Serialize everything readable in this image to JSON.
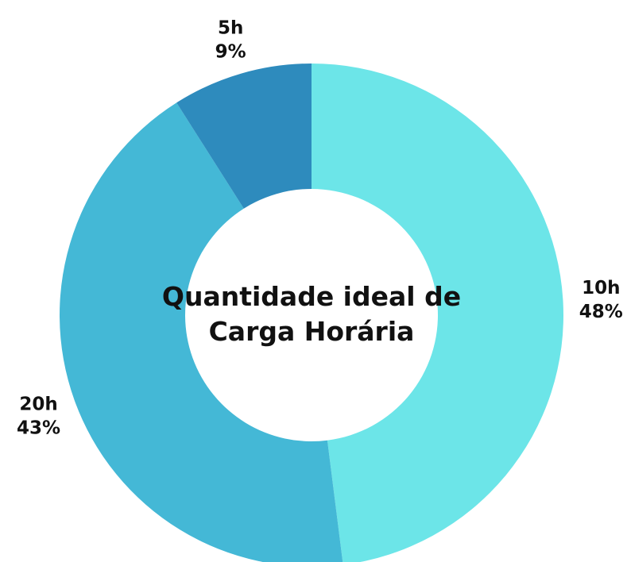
{
  "chart_data": {
    "type": "donut",
    "title": "Quantidade ideal de Carga Horária",
    "categories": [
      "10h",
      "20h",
      "5h"
    ],
    "values": [
      48,
      43,
      9
    ],
    "value_labels": [
      "48%",
      "43%",
      "9%"
    ],
    "colors": [
      "#6ce5e8",
      "#44b8d6",
      "#2e8bbd"
    ]
  }
}
